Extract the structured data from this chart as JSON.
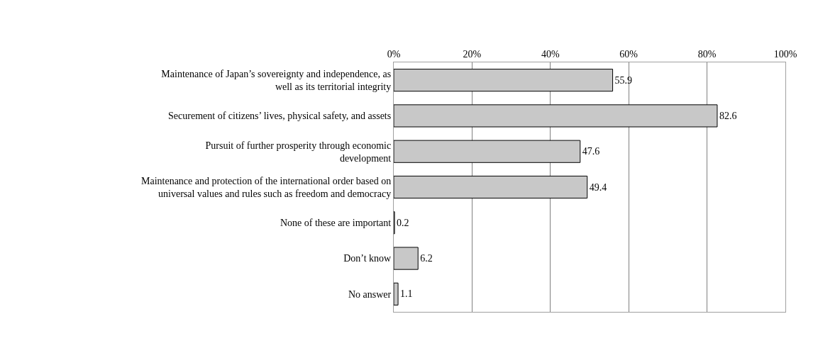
{
  "chart_data": {
    "type": "bar",
    "orientation": "horizontal",
    "categories": [
      "Maintenance of Japan’s sovereignty and independence, as\nwell as its territorial integrity",
      "Securement of citizens’ lives, physical safety, and assets",
      "Pursuit of further prosperity through economic\ndevelopment",
      "Maintenance and protection of the international order based on\nuniversal values and rules such as freedom and democracy",
      "None of these are important",
      "Don’t know",
      "No answer"
    ],
    "values": [
      55.9,
      82.6,
      47.6,
      49.4,
      0.2,
      6.2,
      1.1
    ],
    "color": "#c8c8c8",
    "xlim": [
      0,
      100
    ],
    "xticks": [
      {
        "value": 0,
        "label": "0%"
      },
      {
        "value": 20,
        "label": "20%"
      },
      {
        "value": 40,
        "label": "40%"
      },
      {
        "value": 60,
        "label": "60%"
      },
      {
        "value": 80,
        "label": "80%"
      },
      {
        "value": 100,
        "label": "100%"
      }
    ],
    "grid": "x",
    "data_labels": true,
    "legend": false
  }
}
